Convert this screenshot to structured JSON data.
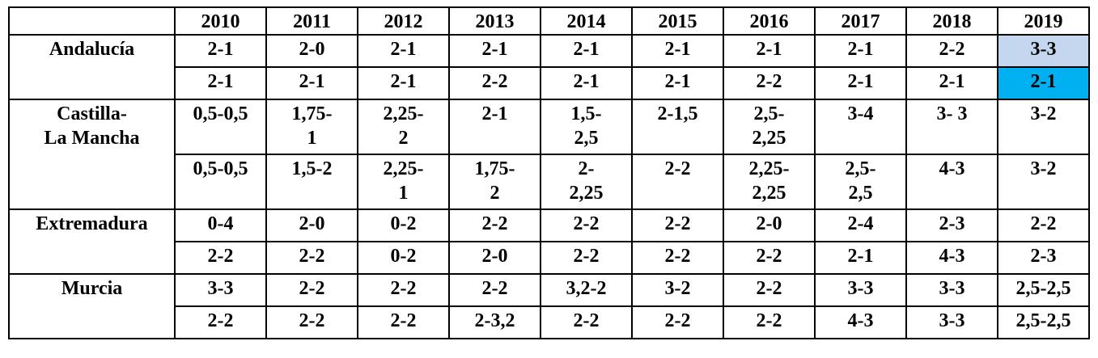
{
  "table": {
    "header": [
      "",
      "2010",
      "2011",
      "2012",
      "2013",
      "2014",
      "2015",
      "2016",
      "2017",
      "2018",
      "2019"
    ],
    "regions": [
      {
        "name": "Andalucía",
        "rows": [
          [
            "2-1",
            "2-0",
            "2-1",
            "2-1",
            "2-1",
            "2-1",
            "2-1",
            "2-1",
            "2-2",
            "3-3"
          ],
          [
            "2-1",
            "2-1",
            "2-1",
            "2-2",
            "2-1",
            "2-1",
            "2-2",
            "2-1",
            "2-1",
            "2-1"
          ]
        ]
      },
      {
        "name": "Castilla-\nLa Mancha",
        "rows": [
          [
            "0,5-0,5",
            "1,75-\n1",
            "2,25-\n2",
            "2-1",
            "1,5-\n2,5",
            "2-1,5",
            "2,5-\n2,25",
            "3-4",
            "3- 3",
            "3-2"
          ],
          [
            "0,5-0,5",
            "1,5-2",
            "2,25-\n1",
            "1,75-\n2",
            "2-\n2,25",
            "2-2",
            "2,25-\n2,25",
            "2,5-\n2,5",
            "4-3",
            "3-2"
          ]
        ]
      },
      {
        "name": "Extremadura",
        "rows": [
          [
            "0-4",
            "2-0",
            "0-2",
            "2-2",
            "2-2",
            "2-2",
            "2-0",
            "2-4",
            "2-3",
            "2-2"
          ],
          [
            "2-2",
            "2-2",
            "0-2",
            "2-0",
            "2-2",
            "2-2",
            "2-2",
            "2-1",
            "4-3",
            "2-3"
          ]
        ]
      },
      {
        "name": "Murcia",
        "rows": [
          [
            "3-3",
            "2-2",
            "2-2",
            "2-2",
            "3,2-2",
            "3-2",
            "2-2",
            "3-3",
            "3-3",
            "2,5-2,5"
          ],
          [
            "2-2",
            "2-2",
            "2-2",
            "2-3,2",
            "2-2",
            "2-2",
            "2-2",
            "4-3",
            "3-3",
            "2,5-2,5"
          ]
        ]
      }
    ]
  }
}
